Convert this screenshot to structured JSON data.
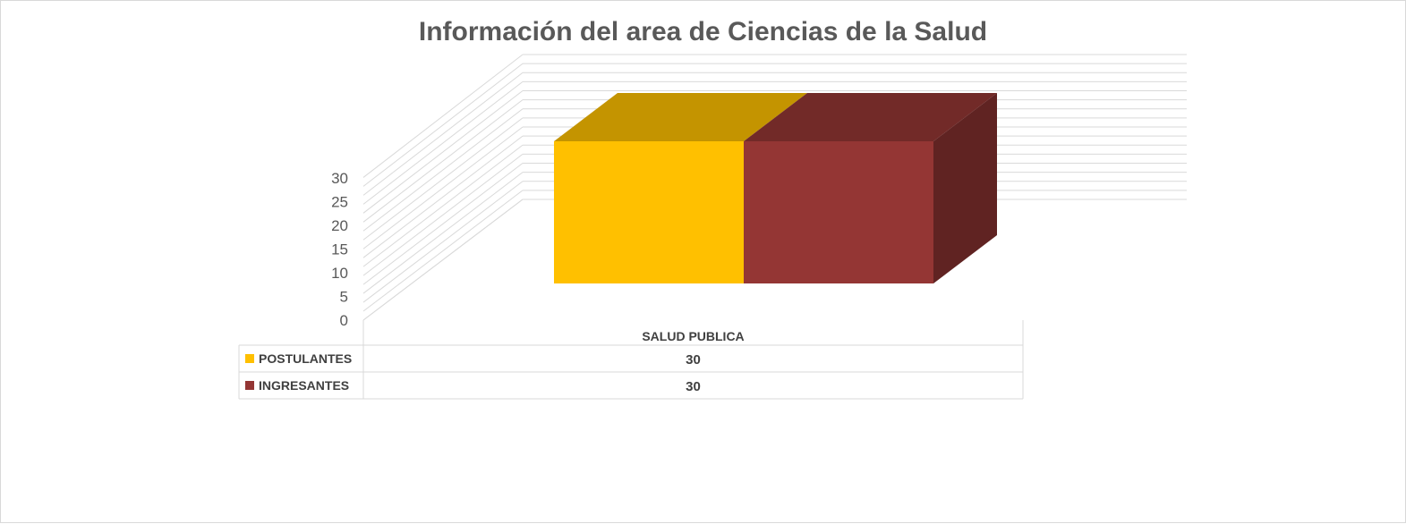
{
  "chart_data": {
    "type": "bar",
    "title": "Información del area de Ciencias de la Salud",
    "categories": [
      "SALUD PUBLICA"
    ],
    "series": [
      {
        "name": "POSTULANTES",
        "values": [
          30
        ],
        "color": "#FFC000"
      },
      {
        "name": "INGRESANTES",
        "values": [
          30
        ],
        "color": "#943634"
      }
    ],
    "ylim": [
      0,
      30
    ],
    "yticks": [
      0,
      5,
      10,
      15,
      20,
      25,
      30
    ],
    "grid": true,
    "legend": "data-table",
    "data_table": true,
    "style": "3d-column"
  }
}
